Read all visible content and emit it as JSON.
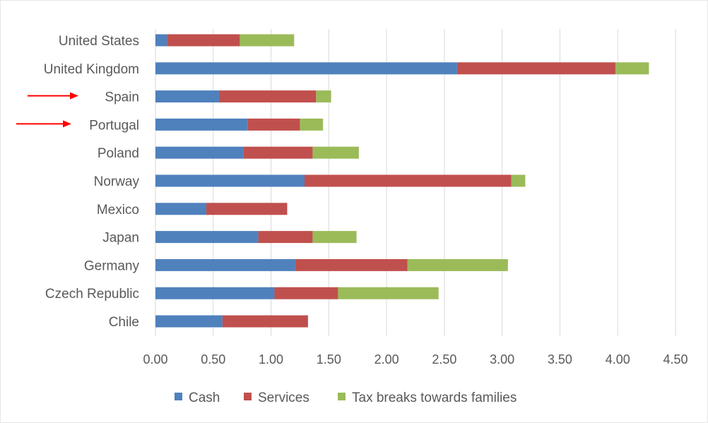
{
  "chart_data": {
    "type": "bar",
    "orientation": "horizontal",
    "stacked": true,
    "categories": [
      "United States",
      "United Kingdom",
      "Spain",
      "Portugal",
      "Poland",
      "Norway",
      "Mexico",
      "Japan",
      "Germany",
      "Czech Republic",
      "Chile"
    ],
    "series": [
      {
        "name": "Cash",
        "color": "#4f81bd",
        "values": [
          0.1,
          2.61,
          0.55,
          0.8,
          0.76,
          1.29,
          0.44,
          0.89,
          1.21,
          1.03,
          0.58
        ]
      },
      {
        "name": "Services",
        "color": "#c0504d",
        "values": [
          0.63,
          1.37,
          0.84,
          0.45,
          0.6,
          1.79,
          0.7,
          0.47,
          0.97,
          0.55,
          0.74
        ]
      },
      {
        "name": "Tax breaks towards families",
        "color": "#9bbb59",
        "values": [
          0.47,
          0.29,
          0.13,
          0.2,
          0.4,
          0.12,
          0.0,
          0.38,
          0.87,
          0.87,
          0.0
        ]
      }
    ],
    "xlim": [
      0,
      4.5
    ],
    "x_ticks": [
      "0.00",
      "0.50",
      "1.00",
      "1.50",
      "2.00",
      "2.50",
      "3.00",
      "3.50",
      "4.00",
      "4.50"
    ],
    "grid": true,
    "legend_position": "bottom",
    "annotations": [
      {
        "type": "arrow",
        "color": "#ff0000",
        "points_to": "Spain"
      },
      {
        "type": "arrow",
        "color": "#ff0000",
        "points_to": "Portugal"
      }
    ]
  }
}
